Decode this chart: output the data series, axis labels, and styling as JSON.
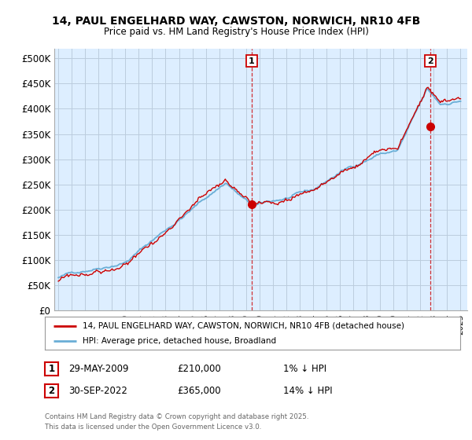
{
  "title1": "14, PAUL ENGELHARD WAY, CAWSTON, NORWICH, NR10 4FB",
  "title2": "Price paid vs. HM Land Registry's House Price Index (HPI)",
  "ylim": [
    0,
    520000
  ],
  "yticks": [
    0,
    50000,
    100000,
    150000,
    200000,
    250000,
    300000,
    350000,
    400000,
    450000,
    500000
  ],
  "ytick_labels": [
    "£0",
    "£50K",
    "£100K",
    "£150K",
    "£200K",
    "£250K",
    "£300K",
    "£350K",
    "£400K",
    "£450K",
    "£500K"
  ],
  "hpi_color": "#6aaed6",
  "price_color": "#cc0000",
  "bg_color": "#ffffff",
  "chart_bg": "#ddeeff",
  "grid_color": "#bbccdd",
  "sale1_date": 2009.42,
  "sale1_price": 210000,
  "sale2_date": 2022.75,
  "sale2_price": 365000,
  "legend_label1": "14, PAUL ENGELHARD WAY, CAWSTON, NORWICH, NR10 4FB (detached house)",
  "legend_label2": "HPI: Average price, detached house, Broadland",
  "footer1": "Contains HM Land Registry data © Crown copyright and database right 2025.",
  "footer2": "This data is licensed under the Open Government Licence v3.0."
}
